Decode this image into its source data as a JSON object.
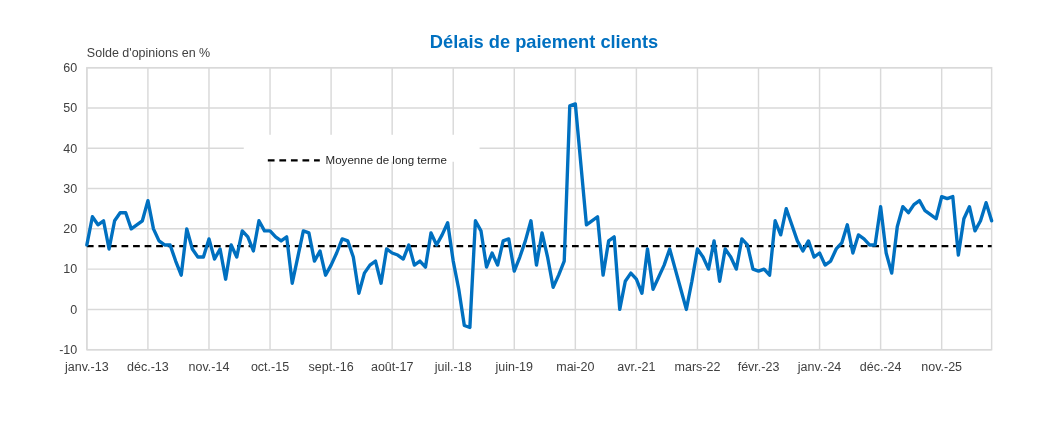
{
  "chart_data": {
    "type": "line",
    "title": "Délais de paiement clients",
    "ylabel": "Solde d'opinions en %",
    "categories": [
      "janv.-13",
      null,
      null,
      null,
      null,
      null,
      null,
      null,
      null,
      null,
      null,
      "déc.-13",
      null,
      null,
      null,
      null,
      null,
      null,
      null,
      null,
      null,
      null,
      "nov.-14",
      null,
      null,
      null,
      null,
      null,
      null,
      null,
      null,
      null,
      null,
      "oct.-15",
      null,
      null,
      null,
      null,
      null,
      null,
      null,
      null,
      null,
      null,
      "sept.-16",
      null,
      null,
      null,
      null,
      null,
      null,
      null,
      null,
      null,
      null,
      "août-17",
      null,
      null,
      null,
      null,
      null,
      null,
      null,
      null,
      null,
      null,
      "juil.-18",
      null,
      null,
      null,
      null,
      null,
      null,
      null,
      null,
      null,
      null,
      "juin-19",
      null,
      null,
      null,
      null,
      null,
      null,
      null,
      null,
      null,
      null,
      "mai-20",
      null,
      null,
      null,
      null,
      null,
      null,
      null,
      null,
      null,
      null,
      "avr.-21",
      null,
      null,
      null,
      null,
      null,
      null,
      null,
      null,
      null,
      null,
      "mars-22",
      null,
      null,
      null,
      null,
      null,
      null,
      null,
      null,
      null,
      null,
      "févr.-23",
      null,
      null,
      null,
      null,
      null,
      null,
      null,
      null,
      null,
      null,
      "janv.-24",
      null,
      null,
      null,
      null,
      null,
      null,
      null,
      null,
      null,
      null,
      "déc.-24",
      null,
      null,
      null,
      null,
      null,
      null,
      null,
      null,
      null,
      null,
      "nov.-25",
      null,
      null,
      null,
      null,
      null,
      null,
      null,
      null,
      null
    ],
    "series": [
      {
        "color": "#0070c0",
        "values": [
          16,
          23,
          21,
          22,
          15,
          22,
          24,
          24,
          20,
          21,
          22,
          27,
          20,
          17,
          16,
          16,
          12,
          8.5,
          20,
          15,
          13,
          13,
          17.5,
          12.5,
          15,
          7.5,
          16,
          13,
          19.5,
          18,
          14.5,
          22,
          19.5,
          19.5,
          18,
          17,
          18,
          6.5,
          13,
          19.5,
          19,
          12,
          14.5,
          8.5,
          11,
          14,
          17.5,
          17,
          13,
          4,
          9,
          11,
          12,
          6.5,
          15,
          14,
          13.5,
          12.5,
          16,
          11,
          12,
          10.5,
          19,
          16,
          18.5,
          21.5,
          12,
          5,
          -4,
          -4.5,
          22,
          19.5,
          10.5,
          14,
          11,
          17,
          17.5,
          9.5,
          13,
          17,
          22,
          11,
          19,
          13,
          5.5,
          8.5,
          12,
          50.5,
          51,
          36,
          21,
          22,
          23,
          8.5,
          17,
          18,
          0,
          7,
          9,
          7.5,
          4,
          15,
          5,
          8,
          11,
          15,
          10,
          5,
          0,
          7,
          15,
          13,
          10,
          17,
          7,
          15,
          13,
          10,
          17.5,
          16,
          10,
          9.5,
          10,
          8.5,
          22,
          18.5,
          25,
          21,
          17,
          14.5,
          17,
          13,
          14,
          11,
          12,
          15,
          16.5,
          21,
          14,
          18.5,
          17.5,
          16,
          16,
          25.5,
          14,
          9,
          20.5,
          25.5,
          24,
          26,
          27,
          24.5,
          23.5,
          22.5,
          28,
          27.5,
          28,
          13.5,
          22.5,
          25.5,
          19.5,
          22,
          26.5,
          22
        ]
      }
    ],
    "ylim": [
      -10,
      60
    ],
    "yticks": [
      -10,
      0,
      10,
      20,
      30,
      40,
      50,
      60
    ],
    "grid": true,
    "line_style": "solid",
    "ref_lines": [
      {
        "axis": "y",
        "value": 15.7,
        "label": "Moyenne de long terme",
        "color": "#000000",
        "line_style": "dashed"
      }
    ]
  }
}
